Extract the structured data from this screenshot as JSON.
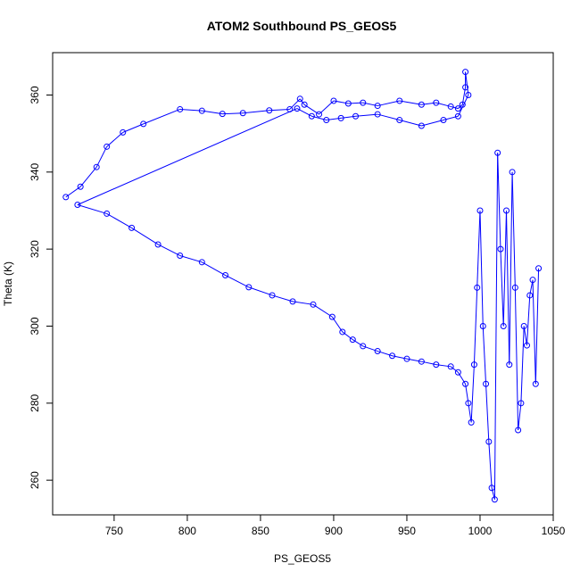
{
  "chart_data": {
    "type": "scatter",
    "title": "ATOM2 Southbound PS_GEOS5",
    "xlabel": "PS_GEOS5",
    "ylabel": "Theta (K)",
    "xlim": [
      708,
      1050
    ],
    "ylim": [
      251,
      371
    ],
    "xticks": [
      750,
      800,
      850,
      900,
      950,
      1000,
      1050
    ],
    "yticks": [
      260,
      280,
      300,
      320,
      340,
      360
    ],
    "grid": false,
    "legend": "none",
    "color": "#0000ff",
    "x": [
      717,
      727,
      738,
      745,
      756,
      770,
      795,
      810,
      824,
      838,
      856,
      870,
      877,
      880,
      890,
      900,
      910,
      920,
      930,
      945,
      960,
      970,
      980,
      985,
      988,
      990,
      990,
      992,
      985,
      975,
      960,
      945,
      930,
      915,
      905,
      895,
      885,
      875,
      725,
      745,
      762,
      780,
      795,
      810,
      826,
      842,
      858,
      872,
      886,
      899,
      906,
      913,
      920,
      930,
      940,
      950,
      960,
      970,
      980,
      985,
      990,
      992,
      994,
      996,
      998,
      1000,
      1002,
      1004,
      1006,
      1008,
      1010,
      1012,
      1014,
      1016,
      1018,
      1020,
      1022,
      1024,
      1026,
      1028,
      1030,
      1032,
      1034,
      1036,
      1038,
      1040
    ],
    "y": [
      333.5,
      336.2,
      341.3,
      346.6,
      350.3,
      352.5,
      356.3,
      355.9,
      355.1,
      355.3,
      356.0,
      356.3,
      359.0,
      357.5,
      355.0,
      358.5,
      357.8,
      358.0,
      357.2,
      358.5,
      357.5,
      358.0,
      357.0,
      356.5,
      357.5,
      362.0,
      366.0,
      360.0,
      354.5,
      353.5,
      352.0,
      353.5,
      355.0,
      354.5,
      354.0,
      353.5,
      354.5,
      356.5,
      331.5,
      329.2,
      325.5,
      321.2,
      318.3,
      316.6,
      313.2,
      310.1,
      308.0,
      306.4,
      305.6,
      302.4,
      298.5,
      296.5,
      294.8,
      293.5,
      292.3,
      291.5,
      290.8,
      290.0,
      289.5,
      288.0,
      285.0,
      280.0,
      275.0,
      290.0,
      310.0,
      330.0,
      300.0,
      285.0,
      270.0,
      258.0,
      255.0,
      345.0,
      320.0,
      300.0,
      330.0,
      290.0,
      340.0,
      310.0,
      273.0,
      280.0,
      300.0,
      295.0,
      308.0,
      312.0,
      285.0,
      315.0
    ]
  }
}
